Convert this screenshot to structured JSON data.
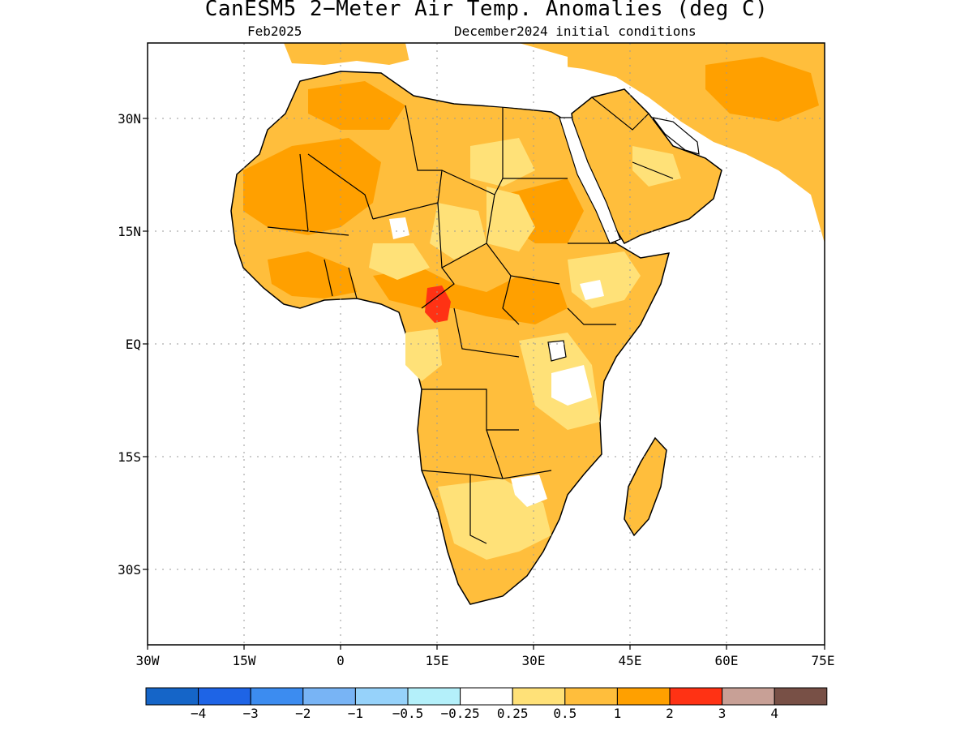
{
  "title": "CanESM5 2−Meter Air Temp. Anomalies (deg C)",
  "subtitle_left": "Feb2025",
  "subtitle_right": "December2024 initial conditions",
  "lat_labels": [
    "30N",
    "15N",
    "EQ",
    "15S",
    "30S"
  ],
  "lon_labels": [
    "30W",
    "15W",
    "0",
    "15E",
    "30E",
    "45E",
    "60E",
    "75E"
  ],
  "colorbar": {
    "colors": [
      "#1565c8",
      "#1e64e6",
      "#3c8cf0",
      "#78b4f5",
      "#96d2fa",
      "#b4f0fa",
      "#ffffff",
      "#ffe178",
      "#ffbe3c",
      "#ffa000",
      "#ff3214",
      "#c8a096",
      "#785046"
    ],
    "ticks": [
      "−4",
      "−3",
      "−2",
      "−1",
      "−0.5",
      "−0.25",
      "0.25",
      "0.5",
      "1",
      "2",
      "3",
      "4"
    ]
  }
}
